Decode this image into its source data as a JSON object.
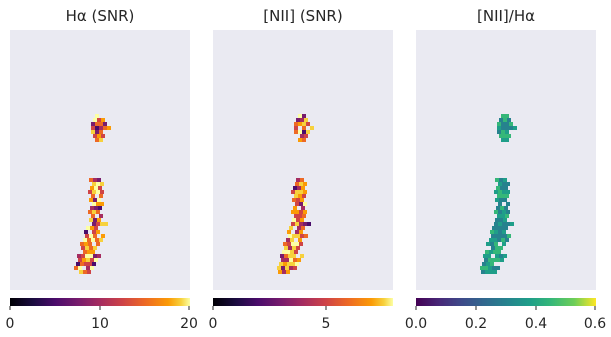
{
  "chart_data": [
    {
      "type": "heatmap",
      "title": "Hα (SNR)",
      "colormap": "inferno",
      "colorbar": {
        "range": [
          0,
          20
        ],
        "ticks": [
          "0",
          "10",
          "20"
        ]
      },
      "grid": false,
      "background": "#eaeaf2"
    },
    {
      "type": "heatmap",
      "title": "[NII] (SNR)",
      "colormap": "inferno",
      "colorbar": {
        "range": [
          0,
          8.8
        ],
        "ticks": [
          "0",
          "5"
        ]
      },
      "grid": false,
      "background": "#eaeaf2"
    },
    {
      "type": "heatmap",
      "title": "[NII]/Hα",
      "colormap": "viridis",
      "colorbar": {
        "range": [
          0.0,
          0.6
        ],
        "ticks": [
          "0.0",
          "0.2",
          "0.4",
          "0.6"
        ]
      },
      "grid": false,
      "background": "#eaeaf2"
    }
  ]
}
